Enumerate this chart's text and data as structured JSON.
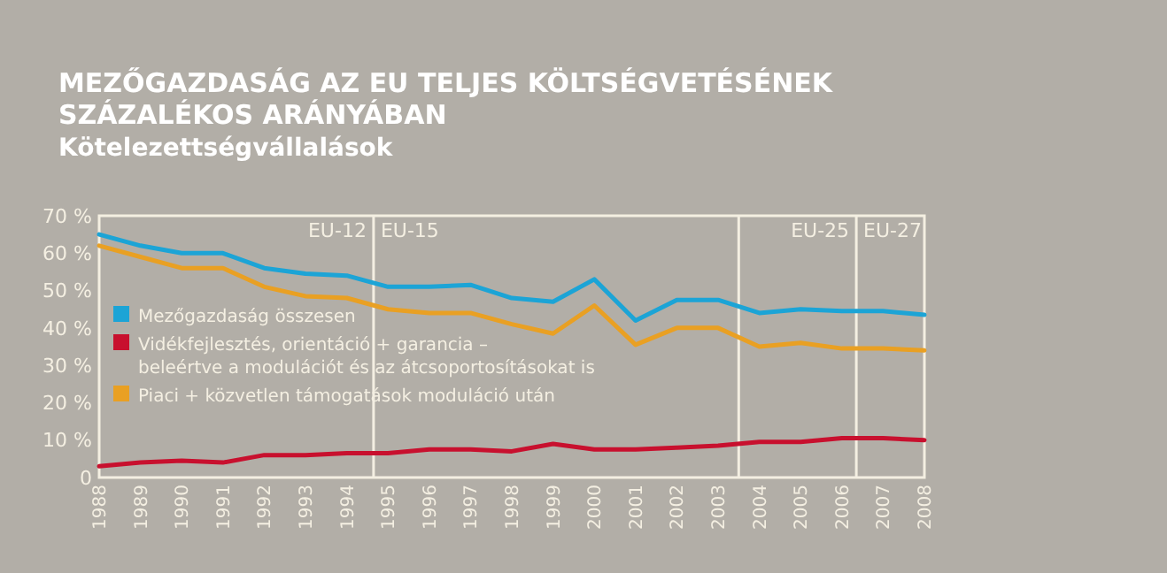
{
  "chart_data": {
    "type": "line",
    "title": "MEZŐGAZDASÁG AZ EU TELJES KÖLTSÉGVETÉSÉNEK SZÁZALÉKOS ARÁNYÁBAN",
    "subtitle": "Kötelezettségvállalások",
    "x": [
      1988,
      1989,
      1990,
      1991,
      1992,
      1993,
      1994,
      1995,
      1996,
      1997,
      1998,
      1999,
      2000,
      2001,
      2002,
      2003,
      2004,
      2005,
      2006,
      2007,
      2008
    ],
    "series": [
      {
        "name": "Mezőgazdaság összesen",
        "color": "#1ca4d6",
        "values": [
          65,
          62,
          60,
          60,
          56,
          54.5,
          54,
          51,
          51,
          51.5,
          48,
          47,
          53,
          42,
          47.5,
          47.5,
          44,
          45,
          44.5,
          44.5,
          43.5
        ]
      },
      {
        "name": "Vidékfejlesztés, orientáció + garancia – beleértve a modulációt és az átcsoportosításokat is",
        "color": "#c8102e",
        "values": [
          3,
          4,
          4.5,
          4,
          6,
          6,
          6.5,
          6.5,
          7.5,
          7.5,
          7,
          9,
          7.5,
          7.5,
          8,
          8.5,
          9.5,
          9.5,
          10.5,
          10.5,
          10
        ]
      },
      {
        "name": "Piaci + közvetlen támogatások moduláció után",
        "color": "#e9a023",
        "values": [
          62,
          59,
          56,
          56,
          51,
          48.5,
          48,
          45,
          44,
          44,
          41,
          38.5,
          46,
          35.5,
          40,
          40,
          35,
          36,
          34.5,
          34.5,
          34
        ]
      }
    ],
    "xlim": [
      1988,
      2008
    ],
    "xticks": [
      1988,
      1989,
      1990,
      1991,
      1992,
      1993,
      1994,
      1995,
      1996,
      1997,
      1998,
      1999,
      2000,
      2001,
      2002,
      2003,
      2004,
      2005,
      2006,
      2007,
      2008
    ],
    "ylim": [
      0,
      70
    ],
    "yticks": [
      0,
      {
        "value": 10,
        "label": "10 %"
      },
      {
        "value": 20,
        "label": "20 %"
      },
      {
        "value": 30,
        "label": "30 %"
      },
      {
        "value": 40,
        "label": "40 %"
      },
      {
        "value": 50,
        "label": "50 %"
      },
      {
        "value": 60,
        "label": "60 %"
      },
      {
        "value": 70,
        "label": "70 %"
      }
    ],
    "ref_lines": [
      {
        "axis": "x",
        "value": 1994.65,
        "label": "EU-15",
        "color": "#f4efe2"
      },
      {
        "axis": "x",
        "value": 2003.5,
        "color": "#f4efe2"
      },
      {
        "axis": "x",
        "value": 2006.35,
        "label": "EU-27",
        "color": "#f4efe2"
      }
    ],
    "annotations": [
      "EU-12",
      "EU-25"
    ],
    "legend": "left",
    "grid": false,
    "marker": "none",
    "line_style": "solid"
  }
}
